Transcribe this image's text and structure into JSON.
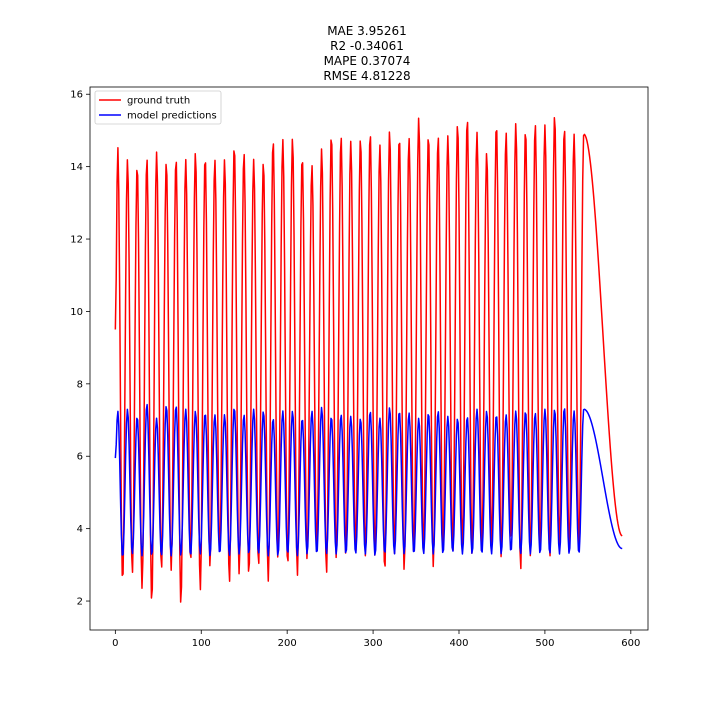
{
  "chart_data": {
    "type": "line",
    "title_lines": [
      "MAE 3.95261",
      "R2 -0.34061",
      "MAPE 0.37074",
      "RMSE 4.81228"
    ],
    "xlabel": "",
    "ylabel": "",
    "xlim": [
      -29.5,
      620
    ],
    "ylim": [
      1.2,
      16.2
    ],
    "xticks": [
      0,
      100,
      200,
      300,
      400,
      500,
      600
    ],
    "yticks": [
      2,
      4,
      6,
      8,
      10,
      12,
      14,
      16
    ],
    "grid": false,
    "legend_position": "top-left",
    "n_points": 591,
    "cycle_period": 11.3,
    "series": [
      {
        "name": "ground truth",
        "color": "#ff0000",
        "start_value": 9.5,
        "end_value": 3.8,
        "peaks": [
          14.55,
          14.2,
          14.05,
          14.25,
          14.4,
          14.15,
          14.25,
          14.2,
          14.4,
          14.3,
          14.2,
          14.2,
          14.6,
          14.4,
          14.2,
          14.15,
          14.75,
          14.75,
          14.8,
          14.3,
          14.05,
          14.5,
          14.9,
          14.85,
          14.7,
          14.8,
          14.95,
          14.6,
          15.0,
          14.85,
          14.8,
          15.35,
          14.9,
          14.85,
          14.85,
          15.2,
          15.35,
          14.95,
          14.4,
          15.2,
          14.95,
          15.2,
          15.05,
          15.2,
          15.15,
          15.45,
          15.1,
          14.9,
          14.9
        ],
        "troughs": [
          2.5,
          2.75,
          2.35,
          1.95,
          2.85,
          2.85,
          1.9,
          3.05,
          2.3,
          2.95,
          3.2,
          2.5,
          2.75,
          2.7,
          2.95,
          2.55,
          3.15,
          2.95,
          2.7,
          3.15,
          3.35,
          2.75,
          3.2,
          3.2,
          3.3,
          3.25,
          3.2,
          2.8,
          3.3,
          2.85,
          3.2,
          3.3,
          2.95,
          3.35,
          3.3,
          3.45,
          3.25,
          3.4,
          3.55,
          3.2,
          3.6,
          2.85,
          3.25,
          3.3,
          3.15,
          3.5,
          3.3,
          3.4
        ]
      },
      {
        "name": "model predictions",
        "color": "#0000ff",
        "start_value": 5.95,
        "end_value": 3.45,
        "peaks": [
          7.25,
          7.3,
          7.1,
          7.45,
          7.05,
          7.4,
          7.4,
          7.3,
          7.25,
          7.2,
          7.15,
          7.15,
          7.35,
          7.15,
          7.3,
          7.25,
          7.05,
          7.25,
          7.25,
          7.05,
          7.25,
          7.35,
          7.1,
          7.15,
          7.1,
          7.05,
          7.25,
          7.05,
          7.35,
          7.25,
          7.2,
          7.05,
          7.2,
          7.25,
          7.1,
          7.05,
          7.1,
          7.3,
          7.25,
          7.15,
          7.15,
          7.25,
          7.25,
          7.2,
          7.3,
          7.3,
          7.35,
          7.25,
          7.3
        ],
        "troughs": [
          3.2,
          3.3,
          3.25,
          3.25,
          3.25,
          3.25,
          3.25,
          3.25,
          3.3,
          3.25,
          3.3,
          3.25,
          3.3,
          3.3,
          3.3,
          3.25,
          3.25,
          3.3,
          3.25,
          3.3,
          3.3,
          3.3,
          3.3,
          3.3,
          3.3,
          3.3,
          3.25,
          3.3,
          3.3,
          3.3,
          3.3,
          3.3,
          3.3,
          3.3,
          3.35,
          3.3,
          3.3,
          3.3,
          3.3,
          3.3,
          3.35,
          3.3,
          3.3,
          3.3,
          3.3,
          3.3,
          3.3,
          3.3
        ]
      }
    ]
  }
}
